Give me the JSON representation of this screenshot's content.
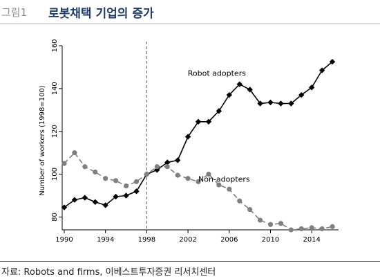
{
  "header": {
    "figure_label": "그림1",
    "title": "로봇채택 기업의 증가"
  },
  "source": "자료: Robots and firms, 이베스트투자증권 리서치센터",
  "chart_data": {
    "type": "line",
    "title": "",
    "xlabel": "",
    "ylabel": "Number of workers (1998=100)",
    "xlim": [
      1989.8,
      2016.6
    ],
    "ylim": [
      74,
      160
    ],
    "x_ticks": [
      "1990",
      "1994",
      "1998",
      "2002",
      "2006",
      "2010",
      "2014"
    ],
    "y_ticks": [
      "80",
      "100",
      "120",
      "140",
      "160"
    ],
    "reference_line_x": 1998,
    "grid": false,
    "legend": "inline labels",
    "series": [
      {
        "name": "Robot adopters",
        "color": "#000000",
        "marker": "diamond",
        "line_style": "solid",
        "x": [
          1990,
          1991,
          1992,
          1993,
          1994,
          1995,
          1996,
          1997,
          1998,
          1999,
          2000,
          2001,
          2002,
          2003,
          2004,
          2005,
          2006,
          2007,
          2008,
          2009,
          2010,
          2011,
          2012,
          2013,
          2014,
          2015,
          2016
        ],
        "values": [
          84.5,
          88,
          89,
          87,
          85.5,
          89.5,
          90,
          92,
          100,
          102,
          105.5,
          106.5,
          117.5,
          124.5,
          124.5,
          129.5,
          137,
          142,
          139.5,
          133,
          133.5,
          133,
          133,
          137,
          140.5,
          148.5,
          152.5
        ]
      },
      {
        "name": "Non-adopters",
        "color": "#808080",
        "marker": "circle",
        "line_style": "dashed",
        "x": [
          1990,
          1991,
          1992,
          1993,
          1994,
          1995,
          1996,
          1997,
          1998,
          1999,
          2000,
          2001,
          2002,
          2003,
          2004,
          2005,
          2006,
          2007,
          2008,
          2009,
          2010,
          2011,
          2012,
          2013,
          2014,
          2015,
          2016
        ],
        "values": [
          105,
          110,
          103.5,
          101,
          98,
          97,
          94.5,
          96.5,
          100,
          103.5,
          103.5,
          99.5,
          98,
          96.5,
          100,
          95,
          93,
          87.5,
          83.5,
          78.5,
          76.5,
          77,
          74,
          74.5,
          75,
          74.5,
          75.5
        ]
      }
    ]
  }
}
